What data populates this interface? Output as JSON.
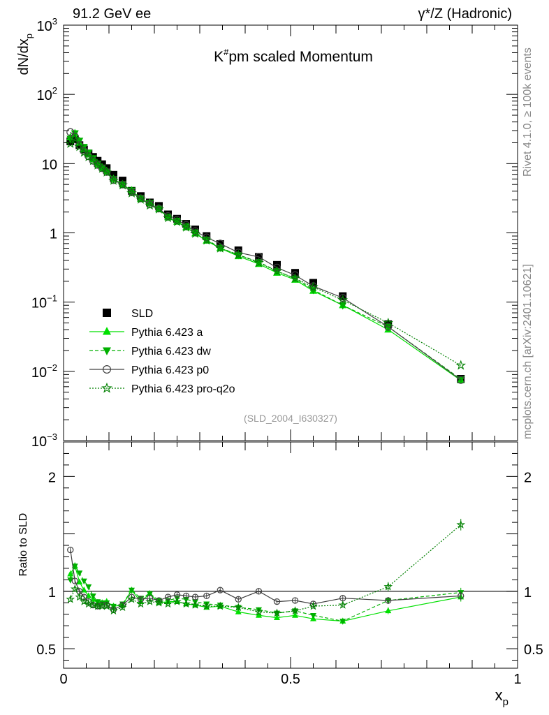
{
  "header": {
    "left": "91.2 GeV ee",
    "right": "γ*/Z (Hadronic)"
  },
  "side_labels": {
    "rivet": "Rivet 4.1.0, ≥ 100k events",
    "source": "mcplots.cern.ch [arXiv:2401.10621]"
  },
  "chart_data": [
    {
      "type": "scatter",
      "title": "K#pm scaled Momentum",
      "title_main": "K",
      "title_sup": "#",
      "title_rest": "pm scaled Momentum",
      "ylabel": "dN/dx",
      "ylabel_sub": "p",
      "yscale": "log",
      "ylim": [
        0.001,
        1000
      ],
      "xlim": [
        0,
        1
      ],
      "analysis_label": "(SLD_2004_I630327)",
      "y_ticks": [
        {
          "value": 1000,
          "base": "10",
          "exp": "3"
        },
        {
          "value": 100,
          "base": "10",
          "exp": "2"
        },
        {
          "value": 10,
          "base": "10",
          "exp": ""
        },
        {
          "value": 1,
          "base": "1",
          "exp": ""
        },
        {
          "value": 0.1,
          "base": "10",
          "exp": "−1"
        },
        {
          "value": 0.01,
          "base": "10",
          "exp": "−2"
        },
        {
          "value": 0.001,
          "base": "10",
          "exp": "−3"
        }
      ],
      "x": [
        0.015,
        0.025,
        0.035,
        0.045,
        0.055,
        0.065,
        0.075,
        0.085,
        0.095,
        0.11,
        0.13,
        0.15,
        0.17,
        0.19,
        0.21,
        0.23,
        0.25,
        0.27,
        0.29,
        0.315,
        0.345,
        0.385,
        0.43,
        0.47,
        0.51,
        0.55,
        0.615,
        0.715,
        0.875
      ],
      "legend": [
        "SLD",
        "Pythia 6.423 a",
        "Pythia 6.423 dw",
        "Pythia 6.423 p0",
        "Pythia 6.423 pro-q2o"
      ],
      "series": [
        {
          "name": "SLD",
          "color": "#000000",
          "marker": "square",
          "line": "none",
          "values": [
            21.0,
            22.5,
            18.5,
            16.0,
            14.0,
            12.5,
            11.0,
            9.8,
            8.6,
            6.9,
            5.7,
            4.05,
            3.4,
            2.75,
            2.45,
            1.85,
            1.6,
            1.35,
            1.12,
            0.9,
            0.69,
            0.56,
            0.45,
            0.345,
            0.265,
            0.19,
            0.122,
            0.048,
            0.0078
          ]
        },
        {
          "name": "Pythia 6.423 a",
          "color": "#00e000",
          "marker": "triangle-up",
          "line": "solid",
          "values": [
            24.0,
            27.5,
            20.0,
            16.2,
            13.5,
            11.6,
            9.9,
            8.8,
            7.8,
            6.0,
            5.0,
            4.1,
            3.1,
            2.7,
            2.2,
            1.68,
            1.45,
            1.2,
            0.98,
            0.77,
            0.6,
            0.46,
            0.355,
            0.265,
            0.21,
            0.145,
            0.09,
            0.04,
            0.0074
          ]
        },
        {
          "name": "Pythia 6.423 dw",
          "color": "#00b000",
          "marker": "triangle-down",
          "line": "dashed",
          "values": [
            23.0,
            27.5,
            21.5,
            17.5,
            14.5,
            12.0,
            10.0,
            8.8,
            7.7,
            6.0,
            5.1,
            4.1,
            3.2,
            2.7,
            2.25,
            1.7,
            1.5,
            1.25,
            1.02,
            0.8,
            0.61,
            0.48,
            0.38,
            0.28,
            0.22,
            0.15,
            0.09,
            0.044,
            0.0077
          ]
        },
        {
          "name": "Pythia 6.423 p0",
          "color": "#404040",
          "marker": "circle-open",
          "line": "solid",
          "values": [
            28.5,
            24.5,
            18.5,
            15.2,
            12.8,
            11.0,
            9.6,
            8.6,
            7.6,
            5.8,
            5.0,
            3.85,
            3.15,
            2.58,
            2.25,
            1.75,
            1.55,
            1.3,
            1.06,
            0.86,
            0.7,
            0.52,
            0.45,
            0.315,
            0.245,
            0.17,
            0.115,
            0.044,
            0.0075
          ]
        },
        {
          "name": "Pythia 6.423 pro-q2o",
          "color": "#008000",
          "marker": "star-open",
          "line": "dotted",
          "values": [
            19.5,
            23.0,
            17.5,
            14.5,
            12.5,
            11.0,
            9.5,
            8.5,
            7.5,
            5.7,
            4.9,
            3.75,
            3.05,
            2.5,
            2.2,
            1.65,
            1.45,
            1.2,
            0.98,
            0.78,
            0.6,
            0.48,
            0.37,
            0.28,
            0.22,
            0.165,
            0.107,
            0.05,
            0.0122
          ]
        }
      ]
    },
    {
      "type": "scatter",
      "ylabel": "Ratio to SLD",
      "xlabel": "x",
      "xlabel_sub": "p",
      "ylim": [
        0.33,
        2.3
      ],
      "xlim": [
        0,
        1
      ],
      "reference_line": 1,
      "y_tick_labels": [
        {
          "value": 2,
          "label": "2"
        },
        {
          "value": 1,
          "label": "1"
        },
        {
          "value": 0.5,
          "label": "0.5"
        }
      ],
      "x_tick_labels": [
        {
          "value": 0,
          "label": "0"
        },
        {
          "value": 0.5,
          "label": "0.5"
        },
        {
          "value": 1,
          "label": "1"
        }
      ],
      "x": [
        0.015,
        0.025,
        0.035,
        0.045,
        0.055,
        0.065,
        0.075,
        0.085,
        0.095,
        0.11,
        0.13,
        0.15,
        0.17,
        0.19,
        0.21,
        0.23,
        0.25,
        0.27,
        0.29,
        0.315,
        0.345,
        0.385,
        0.43,
        0.47,
        0.51,
        0.55,
        0.615,
        0.715,
        0.875
      ],
      "series": [
        {
          "name": "Pythia 6.423 a",
          "color": "#00e000",
          "marker": "triangle-up",
          "line": "solid",
          "values": [
            1.15,
            1.22,
            1.08,
            1.01,
            0.96,
            0.93,
            0.9,
            0.9,
            0.91,
            0.87,
            0.88,
            1.01,
            0.91,
            0.98,
            0.9,
            0.91,
            0.91,
            0.89,
            0.88,
            0.86,
            0.87,
            0.82,
            0.79,
            0.77,
            0.79,
            0.76,
            0.74,
            0.83,
            0.95
          ],
          "errors": [
            0.03,
            0.03,
            0.02,
            0.02,
            0.02,
            0.02,
            0.02,
            0.02,
            0.02,
            0.02,
            0.02,
            0.02,
            0.02,
            0.02,
            0.02,
            0.02,
            0.02,
            0.02,
            0.02,
            0.02,
            0.02,
            0.02,
            0.02,
            0.02,
            0.02,
            0.02,
            0.02,
            0.03,
            0.04
          ]
        },
        {
          "name": "Pythia 6.423 dw",
          "color": "#00b000",
          "marker": "triangle-down",
          "line": "dashed",
          "values": [
            1.1,
            1.22,
            1.16,
            1.09,
            1.04,
            0.96,
            0.91,
            0.9,
            0.9,
            0.87,
            0.89,
            1.01,
            0.94,
            0.98,
            0.92,
            0.92,
            0.94,
            0.93,
            0.91,
            0.89,
            0.88,
            0.86,
            0.84,
            0.81,
            0.83,
            0.79,
            0.74,
            0.92,
            0.99
          ],
          "errors": [
            0.03,
            0.03,
            0.02,
            0.02,
            0.02,
            0.02,
            0.02,
            0.02,
            0.02,
            0.02,
            0.02,
            0.02,
            0.02,
            0.02,
            0.02,
            0.02,
            0.02,
            0.02,
            0.02,
            0.02,
            0.02,
            0.02,
            0.02,
            0.02,
            0.02,
            0.02,
            0.02,
            0.03,
            0.04
          ]
        },
        {
          "name": "Pythia 6.423 p0",
          "color": "#404040",
          "marker": "circle-open",
          "line": "solid",
          "values": [
            1.36,
            1.09,
            1.0,
            0.95,
            0.91,
            0.88,
            0.87,
            0.88,
            0.88,
            0.84,
            0.88,
            0.95,
            0.93,
            0.94,
            0.92,
            0.95,
            0.97,
            0.96,
            0.95,
            0.96,
            1.01,
            0.93,
            1.0,
            0.91,
            0.92,
            0.89,
            0.94,
            0.92,
            0.96
          ],
          "errors": [
            0.02,
            0.02,
            0.02,
            0.02,
            0.02,
            0.02,
            0.02,
            0.02,
            0.02,
            0.02,
            0.02,
            0.02,
            0.02,
            0.02,
            0.02,
            0.02,
            0.02,
            0.02,
            0.02,
            0.02,
            0.02,
            0.02,
            0.02,
            0.02,
            0.02,
            0.02,
            0.02,
            0.03,
            0.04
          ]
        },
        {
          "name": "Pythia 6.423 pro-q2o",
          "color": "#008000",
          "marker": "star-open",
          "line": "dotted",
          "values": [
            0.93,
            1.02,
            0.95,
            0.91,
            0.89,
            0.88,
            0.87,
            0.87,
            0.87,
            0.83,
            0.86,
            0.93,
            0.89,
            0.91,
            0.9,
            0.89,
            0.91,
            0.89,
            0.88,
            0.87,
            0.87,
            0.86,
            0.82,
            0.81,
            0.83,
            0.87,
            0.88,
            1.04,
            1.58
          ],
          "errors": [
            0.02,
            0.02,
            0.02,
            0.02,
            0.02,
            0.02,
            0.02,
            0.02,
            0.02,
            0.02,
            0.02,
            0.02,
            0.02,
            0.02,
            0.02,
            0.02,
            0.02,
            0.02,
            0.02,
            0.02,
            0.02,
            0.02,
            0.02,
            0.02,
            0.02,
            0.02,
            0.02,
            0.04,
            0.05
          ]
        }
      ]
    }
  ]
}
